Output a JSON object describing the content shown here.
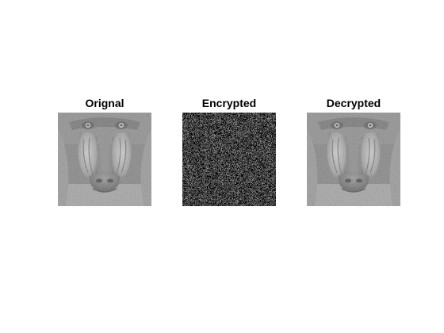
{
  "panels": [
    {
      "title": "Orignal",
      "image": "mandrill-grayscale"
    },
    {
      "title": "Encrypted",
      "image": "random-noise"
    },
    {
      "title": "Decrypted",
      "image": "mandrill-grayscale"
    }
  ]
}
